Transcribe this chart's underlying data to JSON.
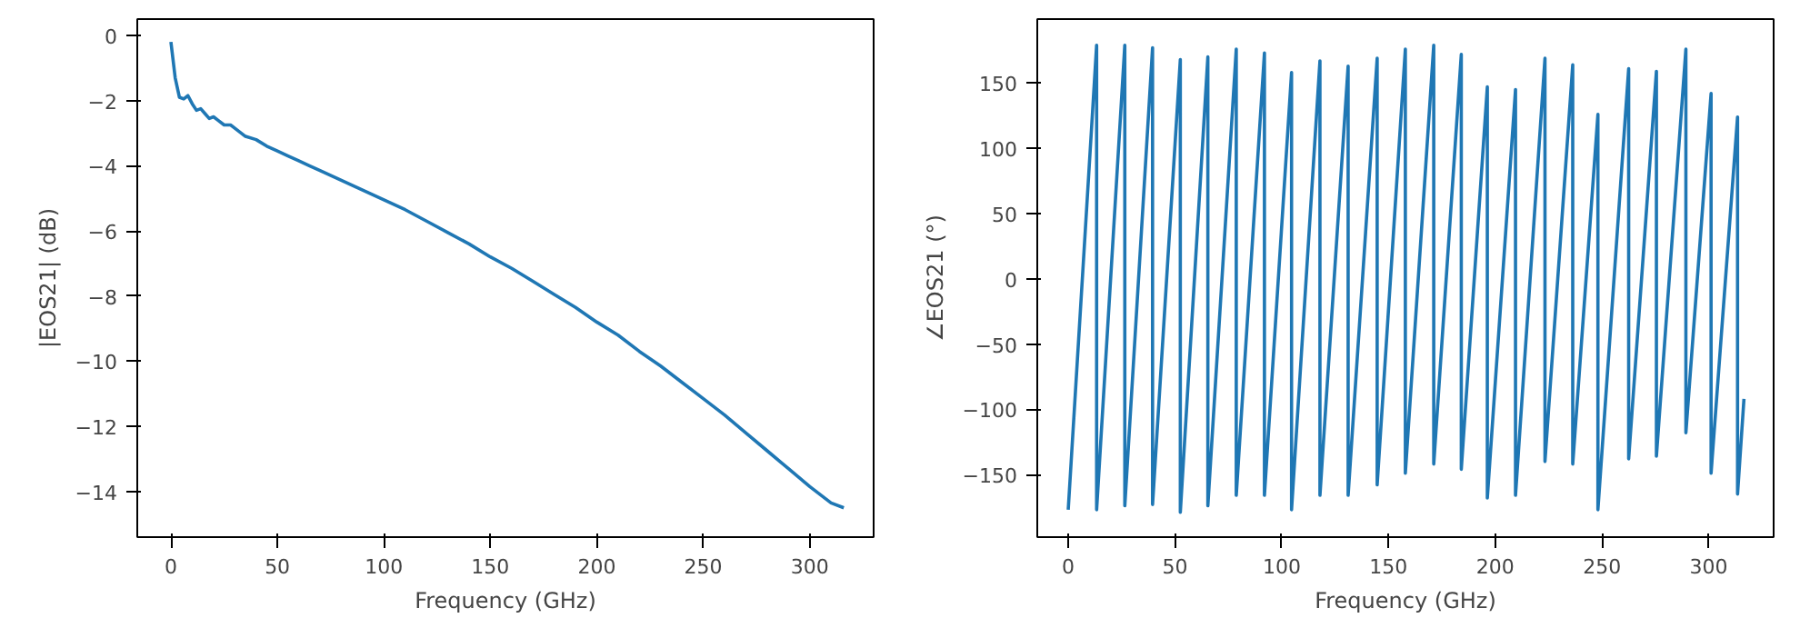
{
  "chart_data": [
    {
      "type": "line",
      "xlabel": "Frequency (GHz)",
      "ylabel": "|EOS21| (dB)",
      "xlim": [
        -15.8,
        330
      ],
      "ylim": [
        -15.4,
        0.5
      ],
      "xticks": [
        0,
        50,
        100,
        150,
        200,
        250,
        300
      ],
      "yticks": [
        -14,
        -12,
        -10,
        -8,
        -6,
        -4,
        -2,
        0
      ],
      "series": [
        {
          "color": "#1f77b4",
          "x": [
            0,
            2,
            4,
            6,
            8,
            10,
            12,
            14,
            16,
            18,
            20,
            22,
            25,
            28,
            31,
            35,
            40,
            45,
            50,
            55,
            60,
            65,
            70,
            80,
            90,
            100,
            110,
            120,
            130,
            140,
            150,
            160,
            170,
            180,
            190,
            200,
            210,
            220,
            230,
            240,
            250,
            260,
            270,
            280,
            290,
            300,
            310,
            316
          ],
          "values": [
            -0.2,
            -1.3,
            -1.9,
            -1.95,
            -1.85,
            -2.1,
            -2.3,
            -2.25,
            -2.4,
            -2.55,
            -2.5,
            -2.6,
            -2.75,
            -2.75,
            -2.9,
            -3.1,
            -3.2,
            -3.4,
            -3.55,
            -3.7,
            -3.85,
            -4.0,
            -4.15,
            -4.45,
            -4.75,
            -5.05,
            -5.35,
            -5.7,
            -6.05,
            -6.4,
            -6.8,
            -7.15,
            -7.55,
            -7.95,
            -8.35,
            -8.8,
            -9.2,
            -9.7,
            -10.15,
            -10.65,
            -11.15,
            -11.65,
            -12.2,
            -12.75,
            -13.3,
            -13.85,
            -14.35,
            -14.5
          ]
        }
      ]
    },
    {
      "type": "line",
      "xlabel": "Frequency (GHz)",
      "ylabel": "∠EOS21 (°)",
      "xlim": [
        -14.5,
        330.4
      ],
      "ylim": [
        -198,
        199
      ],
      "xticks": [
        0,
        50,
        100,
        150,
        200,
        250,
        300
      ],
      "yticks": [
        -150,
        -100,
        -50,
        0,
        50,
        100,
        150
      ],
      "series": [
        {
          "color": "#1f77b4",
          "x": [
            0,
            13.3,
            13.3,
            26.5,
            26.5,
            39.5,
            39.5,
            52.5,
            52.5,
            65.4,
            65.4,
            78.7,
            78.7,
            91.9,
            91.9,
            104.6,
            104.6,
            117.9,
            117.9,
            131.1,
            131.1,
            144.7,
            144.7,
            157.9,
            157.9,
            171.2,
            171.2,
            184.1,
            184.1,
            196.3,
            196.3,
            209.5,
            209.5,
            223.3,
            223.3,
            236.3,
            236.3,
            248.1,
            248.1,
            262.5,
            262.5,
            275.5,
            275.5,
            289.3,
            289.3,
            301.1,
            301.1,
            313.5,
            313.5,
            316.5
          ],
          "values": [
            -177,
            179,
            -177,
            179,
            -174,
            177,
            -173,
            168,
            -179,
            170,
            -174,
            176,
            -166,
            173,
            -166,
            158,
            -177,
            167,
            -166,
            163,
            -166,
            169,
            -158,
            176,
            -149,
            179,
            -142,
            172,
            -146,
            147,
            -168,
            145,
            -166,
            169,
            -140,
            164,
            -142,
            126,
            -177,
            161,
            -138,
            159,
            -136,
            176,
            -118,
            142,
            -149,
            124,
            -165,
            -92
          ]
        }
      ]
    }
  ]
}
